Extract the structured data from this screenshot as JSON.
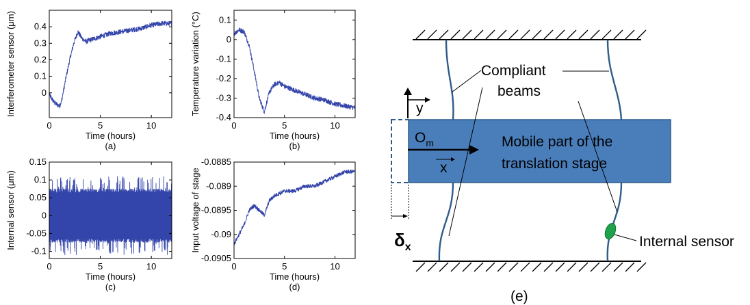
{
  "chart_data": [
    {
      "type": "line",
      "panel": "(a)",
      "xlabel": "Time (hours)",
      "ylabel": "Interferometer sensor (μm)",
      "xlim": [
        0,
        12
      ],
      "ylim": [
        -0.15,
        0.5
      ],
      "xticks": [
        "0",
        "5",
        "10"
      ],
      "yticks": [
        "0",
        "0.1",
        "0.2",
        "0.3",
        "0.4"
      ],
      "series": [
        {
          "x": [
            0,
            0.5,
            1.0,
            1.2,
            1.6,
            2.0,
            2.4,
            2.8,
            3.2,
            3.6,
            4.0,
            5.0,
            6.0,
            7.0,
            8.0,
            9.0,
            10.0,
            11.0,
            12.0
          ],
          "y": [
            -0.01,
            -0.06,
            -0.08,
            -0.05,
            0.08,
            0.2,
            0.3,
            0.37,
            0.33,
            0.31,
            0.32,
            0.34,
            0.36,
            0.37,
            0.38,
            0.39,
            0.41,
            0.42,
            0.42
          ],
          "noise": 0.03
        }
      ]
    },
    {
      "type": "line",
      "panel": "(b)",
      "xlabel": "Time (hours)",
      "ylabel": "Temperature variation (°C)",
      "xlim": [
        0,
        12
      ],
      "ylim": [
        -0.4,
        0.15
      ],
      "xticks": [
        "0",
        "5",
        "10"
      ],
      "yticks": [
        "0.1",
        "0",
        "-0.1",
        "-0.2",
        "-0.3",
        "-0.4"
      ],
      "series": [
        {
          "x": [
            0,
            0.5,
            1.0,
            1.5,
            2.0,
            2.5,
            3.0,
            3.5,
            4.0,
            4.5,
            5.0,
            6.0,
            7.0,
            8.0,
            9.0,
            10.0,
            11.0,
            12.0
          ],
          "y": [
            0.03,
            0.05,
            0.04,
            -0.03,
            -0.16,
            -0.3,
            -0.37,
            -0.27,
            -0.23,
            -0.22,
            -0.24,
            -0.26,
            -0.28,
            -0.3,
            -0.31,
            -0.33,
            -0.34,
            -0.35
          ],
          "noise": 0.025
        }
      ]
    },
    {
      "type": "line",
      "panel": "(c)",
      "xlabel": "Time (hours)",
      "ylabel": "Internal sensor (μm)",
      "xlim": [
        0,
        12
      ],
      "ylim": [
        -0.12,
        0.15
      ],
      "xticks": [
        "0",
        "5",
        "10"
      ],
      "yticks": [
        "0.15",
        "0.1",
        "0.05",
        "0",
        "-0.05",
        "-0.1"
      ],
      "series": [
        {
          "x": [
            0,
            12
          ],
          "y": [
            0,
            0
          ],
          "band": 0.075,
          "spike": 0.11
        }
      ]
    },
    {
      "type": "line",
      "panel": "(d)",
      "xlabel": "Time (hours)",
      "ylabel": "Input voltage of stage",
      "xlim": [
        0,
        12
      ],
      "ylim": [
        -0.0905,
        -0.0885
      ],
      "xticks": [
        "0",
        "5",
        "10"
      ],
      "yticks": [
        "-0.0885",
        "-0.089",
        "-0.0895",
        "-0.09",
        "-0.0905"
      ],
      "series": [
        {
          "x": [
            0,
            0.5,
            1.0,
            1.5,
            2.0,
            2.5,
            3.0,
            3.5,
            4.0,
            5.0,
            6.0,
            7.0,
            8.0,
            9.0,
            10.0,
            11.0,
            12.0
          ],
          "y": [
            -0.0902,
            -0.09,
            -0.0898,
            -0.0895,
            -0.0894,
            -0.0895,
            -0.0896,
            -0.0893,
            -0.0892,
            -0.0891,
            -0.0891,
            -0.089,
            -0.089,
            -0.0889,
            -0.0888,
            -0.0887,
            -0.0887
          ],
          "noise": 8e-05
        }
      ]
    }
  ],
  "diagram": {
    "label_compliant_beams_1": "Compliant",
    "label_compliant_beams_2": "beams",
    "axis_y": "y",
    "origin_main": "O",
    "origin_sub": "m",
    "axis_x": "x",
    "mobile_line_1": "Mobile part of the",
    "mobile_line_2": "translation stage",
    "internal_sensor": "Internal sensor",
    "delta_main": "δ",
    "delta_sub": "x",
    "panel_label": "(e)",
    "colors": {
      "stage": "#4a7ebb",
      "stage_border": "#2e5c8a",
      "sensor": "#1fa34a",
      "series": "#3344aa"
    }
  }
}
